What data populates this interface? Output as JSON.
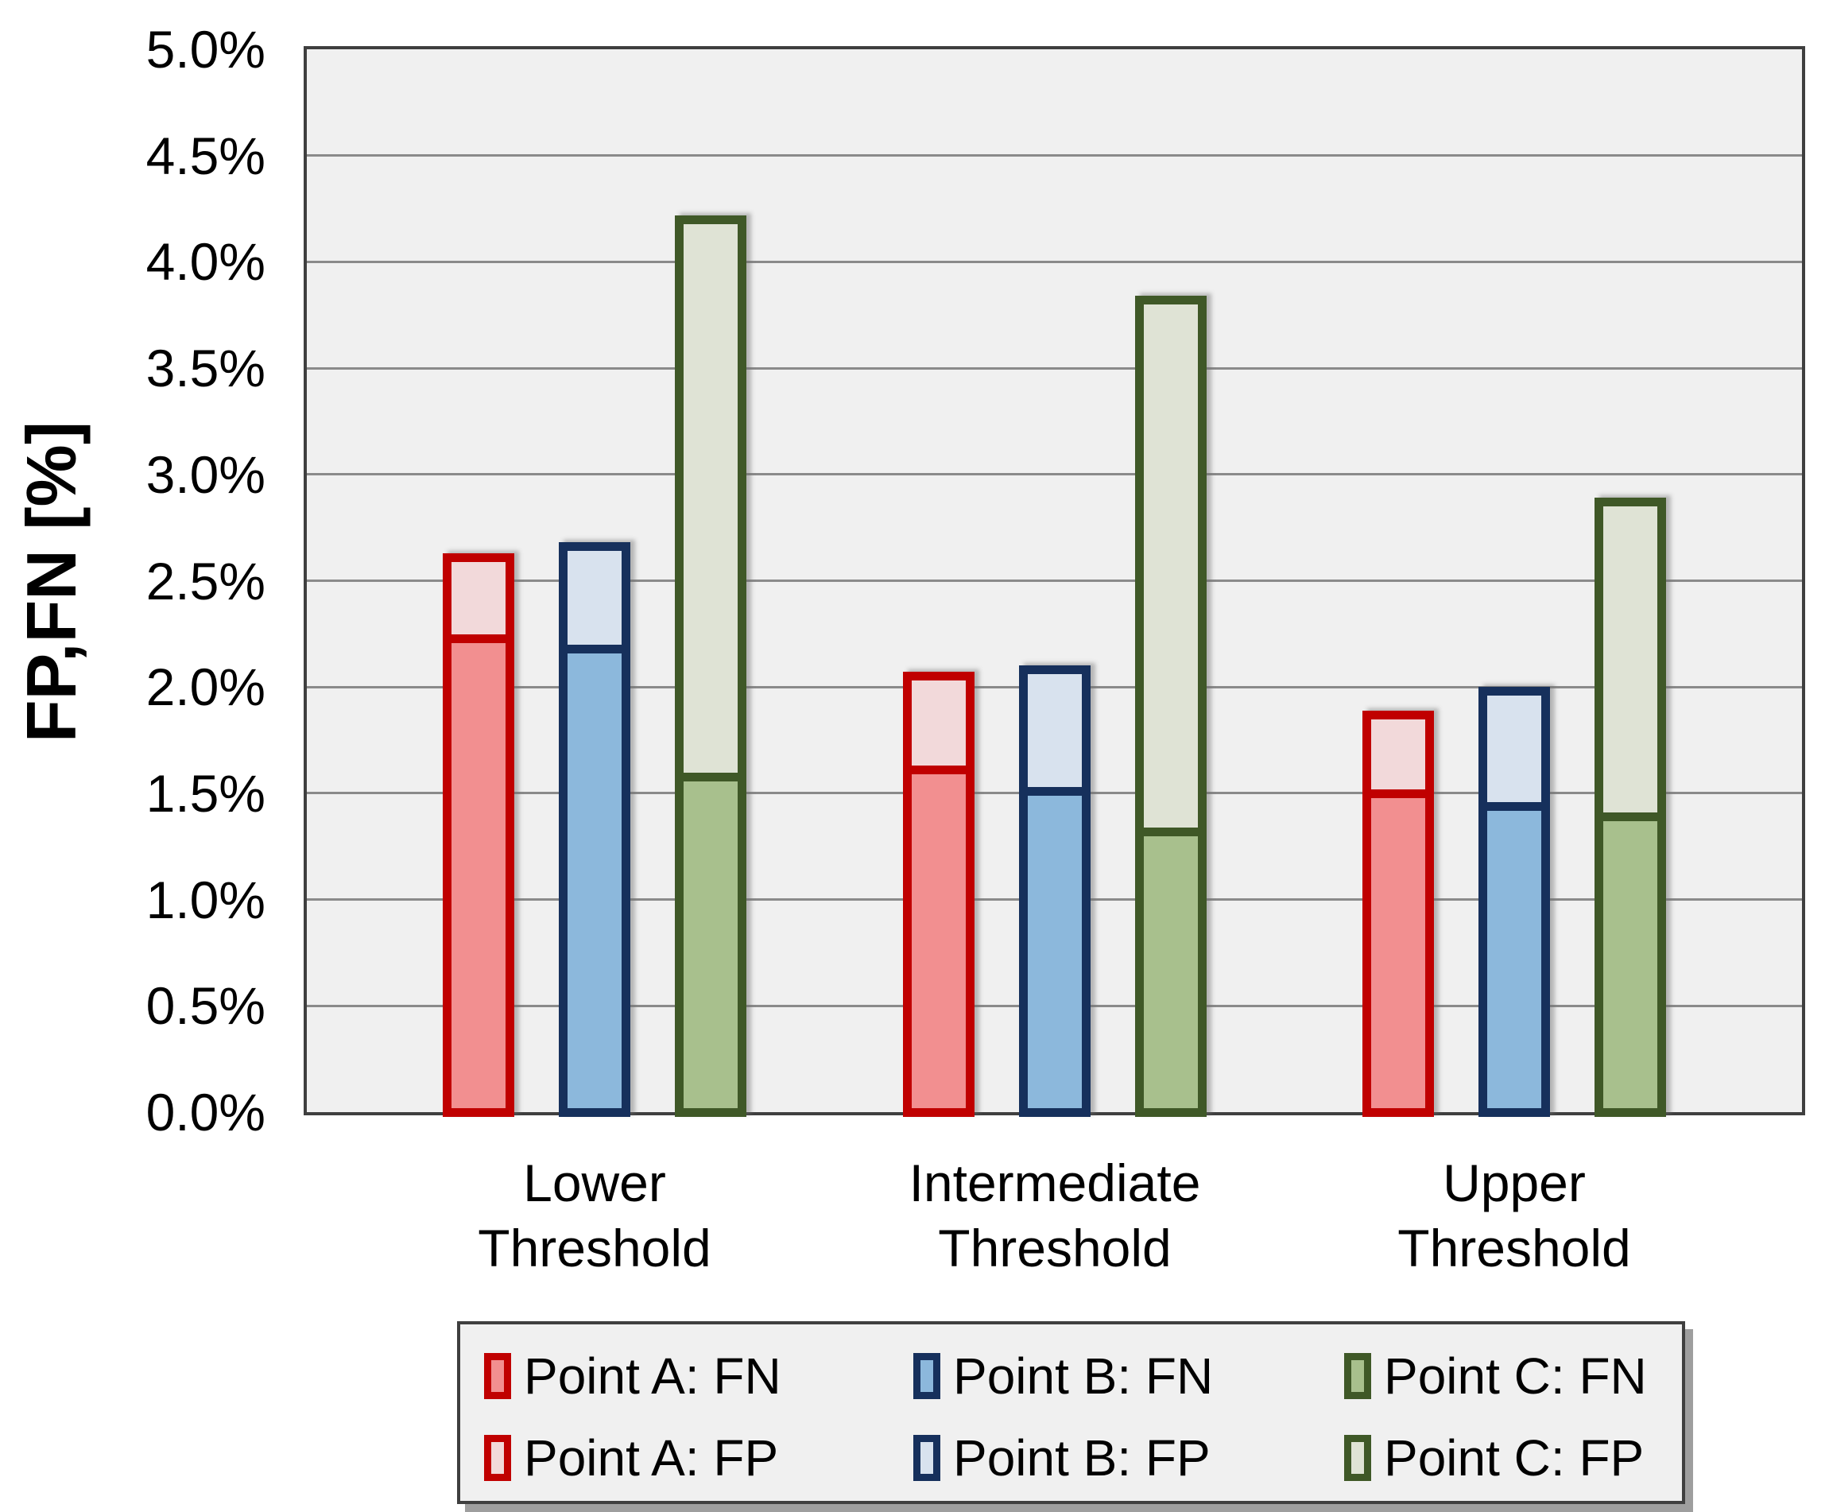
{
  "chart_data": {
    "type": "bar",
    "stacked": true,
    "orientation": "vertical",
    "title": "",
    "ylabel": "FP,FN [%]",
    "ylim": [
      0,
      5
    ],
    "ytick_step_pct": 0.5,
    "grid": "horizontal",
    "legend_position": "bottom",
    "yticks": [
      "5.0%",
      "4.5%",
      "4.0%",
      "3.5%",
      "3.0%",
      "2.5%",
      "2.0%",
      "1.5%",
      "1.0%",
      "0.5%",
      "0.0%"
    ],
    "categories": [
      "Lower Threshold",
      "Intermediate Threshold",
      "Upper Threshold"
    ],
    "category_lines": [
      [
        "Lower",
        "Threshold"
      ],
      [
        "Intermediate",
        "Threshold"
      ],
      [
        "Upper",
        "Threshold"
      ]
    ],
    "series": [
      {
        "point": "Point A",
        "fn_legend": "Point A: FN",
        "fp_legend": "Point A: FP",
        "fn_values_pct": [
          2.23,
          1.61,
          1.5
        ],
        "fp_values_pct": [
          0.4,
          0.46,
          0.39
        ],
        "stack_totals_pct": [
          2.63,
          2.07,
          1.89
        ],
        "colors": {
          "fn_fill": "#f28f90",
          "fp_fill": "#f2d9da",
          "border": "#c00000"
        }
      },
      {
        "point": "Point B",
        "fn_legend": "Point B: FN",
        "fp_legend": "Point B: FP",
        "fn_values_pct": [
          2.18,
          1.51,
          1.44
        ],
        "fp_values_pct": [
          0.5,
          0.59,
          0.56
        ],
        "stack_totals_pct": [
          2.68,
          2.1,
          2.0
        ],
        "colors": {
          "fn_fill": "#8cb8dc",
          "fp_fill": "#d8e2ee",
          "border": "#16305c"
        }
      },
      {
        "point": "Point C",
        "fn_legend": "Point C: FN",
        "fp_legend": "Point C: FP",
        "fn_values_pct": [
          1.58,
          1.32,
          1.39
        ],
        "fp_values_pct": [
          2.64,
          2.52,
          1.5
        ],
        "stack_totals_pct": [
          4.22,
          3.84,
          2.89
        ],
        "colors": {
          "fn_fill": "#a8c08d",
          "fp_fill": "#dfe3d5",
          "border": "#3f5827"
        }
      }
    ]
  },
  "style_colors": {
    "page_bg": "#ffffff",
    "plot_bg": "#f0f0f0",
    "plot_border": "#3f3f3f",
    "gridline": "#8a8a8a",
    "legend_bg": "#f0f0f0",
    "legend_border": "#3f3f3f",
    "text": "#000000"
  }
}
